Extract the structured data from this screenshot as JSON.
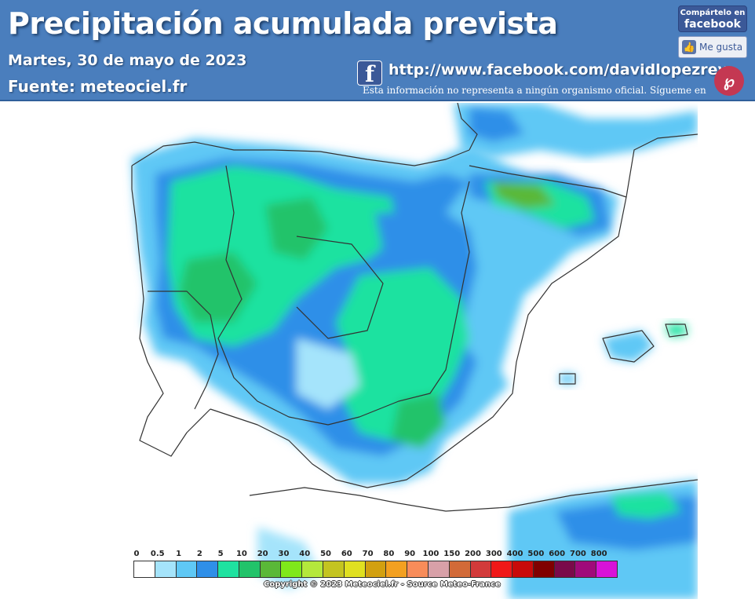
{
  "header": {
    "title": "Precipitación acumulada prevista",
    "date": "Martes, 30 de mayo de 2023",
    "source_label": "Fuente:",
    "source_value": "meteociel.fr",
    "facebook_url": "http://www.facebook.com/davidlopezrey",
    "disclaimer": "Esta información no representa a ningún organismo oficial. Sígueme en",
    "share_line1": "Compártelo en",
    "share_line2": "facebook",
    "like_label": "Me gusta",
    "fb_letter": "f",
    "like_icon": "thumbs-up-icon"
  },
  "legend": {
    "labels": [
      "0",
      "0.5",
      "1",
      "2",
      "5",
      "10",
      "20",
      "30",
      "40",
      "50",
      "60",
      "70",
      "80",
      "90",
      "100",
      "150",
      "200",
      "300",
      "400",
      "500",
      "600",
      "700",
      "800"
    ],
    "colors": [
      "#ffffff",
      "#a5e4fb",
      "#5fc8f5",
      "#2f8fe8",
      "#1fe2a0",
      "#22c36a",
      "#5ab838",
      "#7fe81a",
      "#b4e83c",
      "#c4c420",
      "#e0e020",
      "#d2a010",
      "#f3a020",
      "#f88c5a",
      "#d8a0a8",
      "#d26a38",
      "#d23a3a",
      "#f01818",
      "#c80a0a",
      "#800000",
      "#7a0a4a",
      "#a00a7a",
      "#d812d8"
    ]
  },
  "copyright": "Copyright © 2023 Meteociel.fr - Source Meteo-France"
}
